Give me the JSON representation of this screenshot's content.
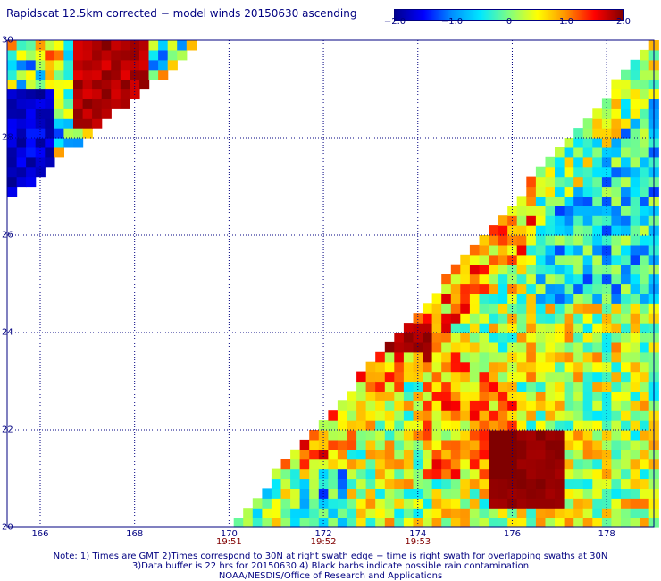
{
  "title": "Rapidscat 12.5km corrected − model winds 20150630 ascending",
  "colorbar": {
    "ticks": [
      {
        "value": -2.0,
        "label": "−2.0"
      },
      {
        "value": -1.0,
        "label": "−1.0"
      },
      {
        "value": 0,
        "label": "0"
      },
      {
        "value": 1.0,
        "label": "1.0"
      },
      {
        "value": 2.0,
        "label": "2.0"
      }
    ],
    "colors": [
      "#000090",
      "#0000ff",
      "#0090ff",
      "#00e8ff",
      "#80ff80",
      "#ffff00",
      "#ff9000",
      "#ff0000",
      "#800000"
    ]
  },
  "map": {
    "lon_range": [
      165.3,
      179
    ],
    "lat_range": [
      20,
      30
    ],
    "lon_labels": [
      "166",
      "168",
      "170",
      "172",
      "174",
      "176",
      "178"
    ],
    "lat_labels": [
      "20",
      "22",
      "24",
      "26",
      "28",
      "30"
    ],
    "time_labels": [
      {
        "lon": 170,
        "label": "19:51"
      },
      {
        "lon": 172,
        "label": "19:52"
      },
      {
        "lon": 174,
        "label": "19:53"
      }
    ]
  },
  "notes": [
    "Note: 1) Times are GMT 2)Times correspond to 30N at right swath edge − time is right swath for overlapping swaths at 30N",
    "3)Data buffer is 22 hrs for 20150630 4) Black barbs indicate possible rain contamination",
    "NOAA/NESDIS/Office of Research and Applications"
  ],
  "chart_data": {
    "type": "heatmap",
    "title": "Rapidscat 12.5km corrected − model winds 20150630 ascending",
    "xlabel": "",
    "ylabel": "",
    "xlim": [
      165.3,
      179
    ],
    "ylim": [
      20,
      30
    ],
    "colorbar_range": [
      -2.0,
      2.0
    ],
    "regions": [
      {
        "description": "Upper-left swath patch, lon 165.3–169.5, lat 26.7–30",
        "lon": [
          165.3,
          169.5
        ],
        "lat": [
          26.7,
          30
        ],
        "typical_value_range": [
          -2.0,
          2.0
        ]
      },
      {
        "description": "Main swath, lower-right triangle from lon 170 (lat 20) to lon 179 (lat 30)",
        "lon": [
          170,
          179
        ],
        "lat": [
          20,
          30
        ],
        "typical_value_range": [
          -1.5,
          2.0
        ]
      },
      {
        "description": "Strong positive maximum",
        "lon": [
          175.5,
          177
        ],
        "lat": [
          20.5,
          22
        ],
        "typical_value_range": [
          1.8,
          2.0
        ]
      },
      {
        "description": "Strong positive band",
        "lon": [
          173,
          174.2
        ],
        "lat": [
          23.5,
          24.2
        ],
        "typical_value_range": [
          1.6,
          2.0
        ]
      }
    ]
  }
}
